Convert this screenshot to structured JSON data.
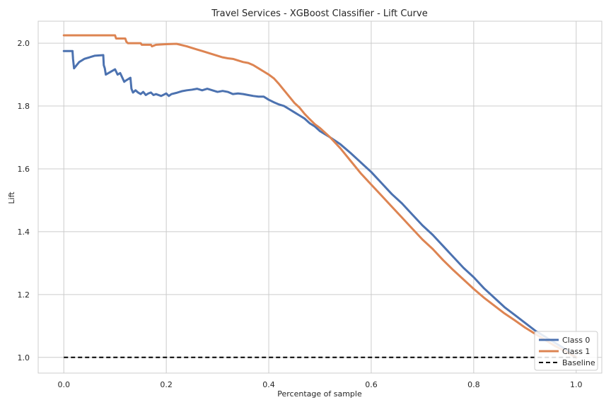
{
  "chart_data": {
    "type": "line",
    "title": "Travel Services - XGBoost Classifier - Lift Curve",
    "xlabel": "Percentage of sample",
    "ylabel": "Lift",
    "xlim": [
      -0.05,
      1.05
    ],
    "ylim": [
      0.95,
      2.07
    ],
    "xticks": [
      0.0,
      0.2,
      0.4,
      0.6,
      0.8,
      1.0
    ],
    "xtick_labels": [
      "0.0",
      "0.2",
      "0.4",
      "0.6",
      "0.8",
      "1.0"
    ],
    "yticks": [
      1.0,
      1.2,
      1.4,
      1.6,
      1.8,
      2.0
    ],
    "ytick_labels": [
      "1.0",
      "1.2",
      "1.4",
      "1.6",
      "1.8",
      "2.0"
    ],
    "grid": true,
    "legend_position": "bottom-right",
    "series": [
      {
        "name": "Class 0",
        "color": "#4c72b0",
        "dash": "solid",
        "x": [
          0.0,
          0.017,
          0.018,
          0.02,
          0.03,
          0.04,
          0.05,
          0.06,
          0.077,
          0.078,
          0.08,
          0.082,
          0.1,
          0.105,
          0.11,
          0.118,
          0.12,
          0.13,
          0.132,
          0.135,
          0.14,
          0.145,
          0.15,
          0.155,
          0.16,
          0.165,
          0.17,
          0.175,
          0.18,
          0.19,
          0.2,
          0.205,
          0.21,
          0.22,
          0.23,
          0.24,
          0.25,
          0.26,
          0.27,
          0.28,
          0.29,
          0.3,
          0.31,
          0.32,
          0.33,
          0.34,
          0.35,
          0.36,
          0.37,
          0.38,
          0.39,
          0.4,
          0.41,
          0.42,
          0.43,
          0.44,
          0.45,
          0.46,
          0.47,
          0.48,
          0.49,
          0.5,
          0.52,
          0.54,
          0.56,
          0.58,
          0.6,
          0.62,
          0.64,
          0.66,
          0.68,
          0.7,
          0.72,
          0.74,
          0.76,
          0.78,
          0.8,
          0.82,
          0.84,
          0.86,
          0.88,
          0.9,
          0.92,
          0.94,
          0.96,
          0.98,
          1.0
        ],
        "y": [
          1.975,
          1.975,
          1.95,
          1.92,
          1.94,
          1.95,
          1.955,
          1.96,
          1.962,
          1.93,
          1.92,
          1.9,
          1.917,
          1.9,
          1.905,
          1.877,
          1.88,
          1.89,
          1.855,
          1.843,
          1.85,
          1.843,
          1.838,
          1.845,
          1.835,
          1.84,
          1.843,
          1.835,
          1.838,
          1.832,
          1.84,
          1.832,
          1.838,
          1.842,
          1.847,
          1.85,
          1.852,
          1.855,
          1.85,
          1.855,
          1.85,
          1.845,
          1.848,
          1.845,
          1.838,
          1.84,
          1.838,
          1.835,
          1.832,
          1.83,
          1.83,
          1.82,
          1.812,
          1.805,
          1.8,
          1.79,
          1.78,
          1.77,
          1.76,
          1.745,
          1.735,
          1.72,
          1.7,
          1.678,
          1.65,
          1.62,
          1.59,
          1.555,
          1.52,
          1.49,
          1.455,
          1.42,
          1.39,
          1.355,
          1.32,
          1.285,
          1.255,
          1.22,
          1.19,
          1.16,
          1.135,
          1.11,
          1.085,
          1.065,
          1.045,
          1.025,
          1.0
        ]
      },
      {
        "name": "Class 1",
        "color": "#dd8452",
        "dash": "solid",
        "x": [
          0.0,
          0.05,
          0.1,
          0.102,
          0.12,
          0.122,
          0.125,
          0.13,
          0.15,
          0.152,
          0.17,
          0.172,
          0.18,
          0.2,
          0.22,
          0.24,
          0.25,
          0.26,
          0.27,
          0.28,
          0.29,
          0.3,
          0.31,
          0.32,
          0.33,
          0.34,
          0.35,
          0.36,
          0.37,
          0.38,
          0.39,
          0.4,
          0.41,
          0.42,
          0.43,
          0.44,
          0.45,
          0.46,
          0.47,
          0.48,
          0.49,
          0.5,
          0.52,
          0.54,
          0.56,
          0.58,
          0.6,
          0.62,
          0.64,
          0.66,
          0.68,
          0.7,
          0.72,
          0.74,
          0.76,
          0.78,
          0.8,
          0.82,
          0.84,
          0.86,
          0.88,
          0.9,
          0.92,
          0.94,
          0.96,
          0.98,
          1.0
        ],
        "y": [
          2.025,
          2.025,
          2.025,
          2.015,
          2.015,
          2.005,
          2.0,
          2.0,
          2.0,
          1.995,
          1.995,
          1.99,
          1.995,
          1.997,
          1.998,
          1.99,
          1.985,
          1.98,
          1.975,
          1.97,
          1.965,
          1.96,
          1.955,
          1.952,
          1.95,
          1.945,
          1.94,
          1.937,
          1.93,
          1.92,
          1.91,
          1.9,
          1.888,
          1.87,
          1.85,
          1.83,
          1.81,
          1.795,
          1.775,
          1.758,
          1.742,
          1.73,
          1.7,
          1.665,
          1.625,
          1.585,
          1.55,
          1.515,
          1.48,
          1.445,
          1.41,
          1.375,
          1.345,
          1.31,
          1.278,
          1.248,
          1.218,
          1.19,
          1.165,
          1.14,
          1.118,
          1.095,
          1.075,
          1.055,
          1.035,
          1.018,
          1.0
        ]
      },
      {
        "name": "Baseline",
        "color": "#000000",
        "dash": "dashed",
        "x": [
          0.0,
          1.0
        ],
        "y": [
          1.0,
          1.0
        ]
      }
    ]
  }
}
